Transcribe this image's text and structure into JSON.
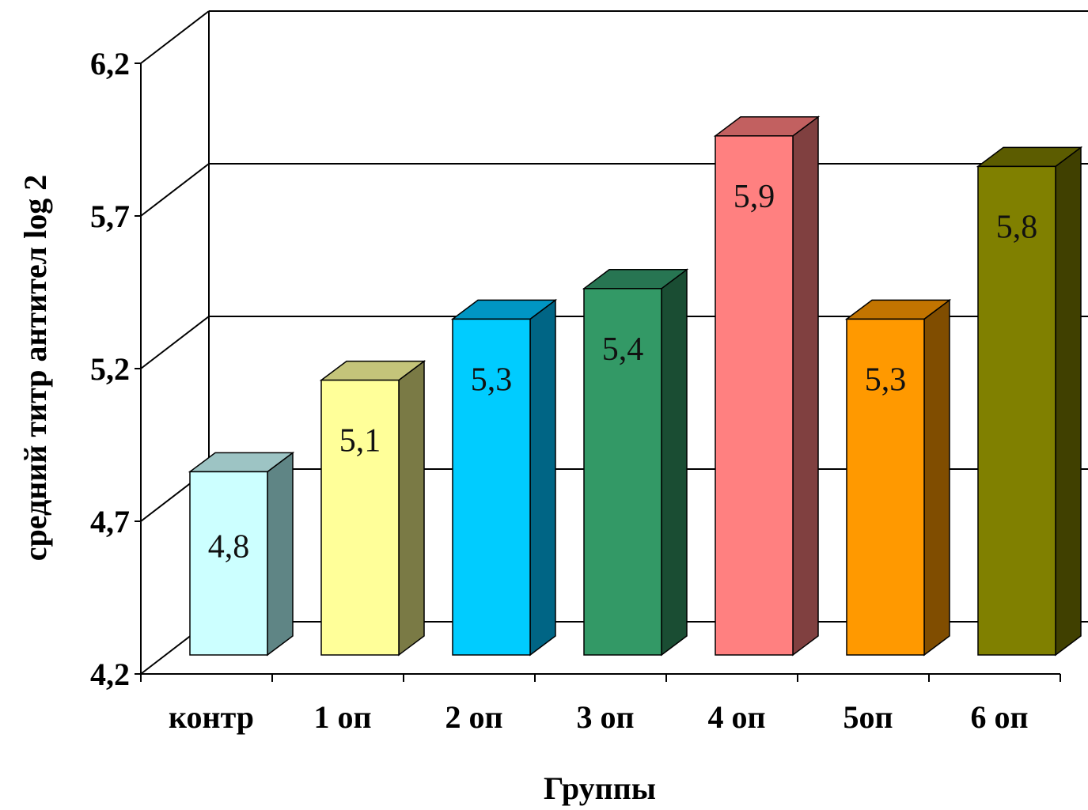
{
  "chart_data": {
    "type": "bar",
    "categories": [
      "контр",
      "1 оп",
      "2 оп",
      "3 оп",
      "4 оп",
      "5оп",
      "6 оп"
    ],
    "values": [
      4.8,
      5.1,
      5.3,
      5.4,
      5.9,
      5.3,
      5.8
    ],
    "data_labels": [
      "4,8",
      "5,1",
      "5,3",
      "5,4",
      "5,9",
      "5,3",
      "5,8"
    ],
    "xlabel": "Группы",
    "ylabel": "средний титр антител  log 2",
    "ylim": [
      4.2,
      6.2
    ],
    "yticks": [
      4.2,
      4.7,
      5.2,
      5.7,
      6.2
    ],
    "ytick_labels": [
      "4,2",
      "4,7",
      "5,2",
      "5,7",
      "6,2"
    ],
    "grid": true,
    "legend": "none",
    "bar_colors": [
      {
        "front": "#ccffff",
        "top": "#9dc4c4",
        "side": "#5f8585"
      },
      {
        "front": "#ffff99",
        "top": "#c4c47a",
        "side": "#7a7a45"
      },
      {
        "front": "#00ccff",
        "top": "#0096c4",
        "side": "#006585"
      },
      {
        "front": "#339966",
        "top": "#277552",
        "side": "#1a4d33"
      },
      {
        "front": "#ff8080",
        "top": "#c26060",
        "side": "#804040"
      },
      {
        "front": "#ff9900",
        "top": "#c27400",
        "side": "#804d00"
      },
      {
        "front": "#808000",
        "top": "#5c5c00",
        "side": "#404000"
      }
    ]
  }
}
